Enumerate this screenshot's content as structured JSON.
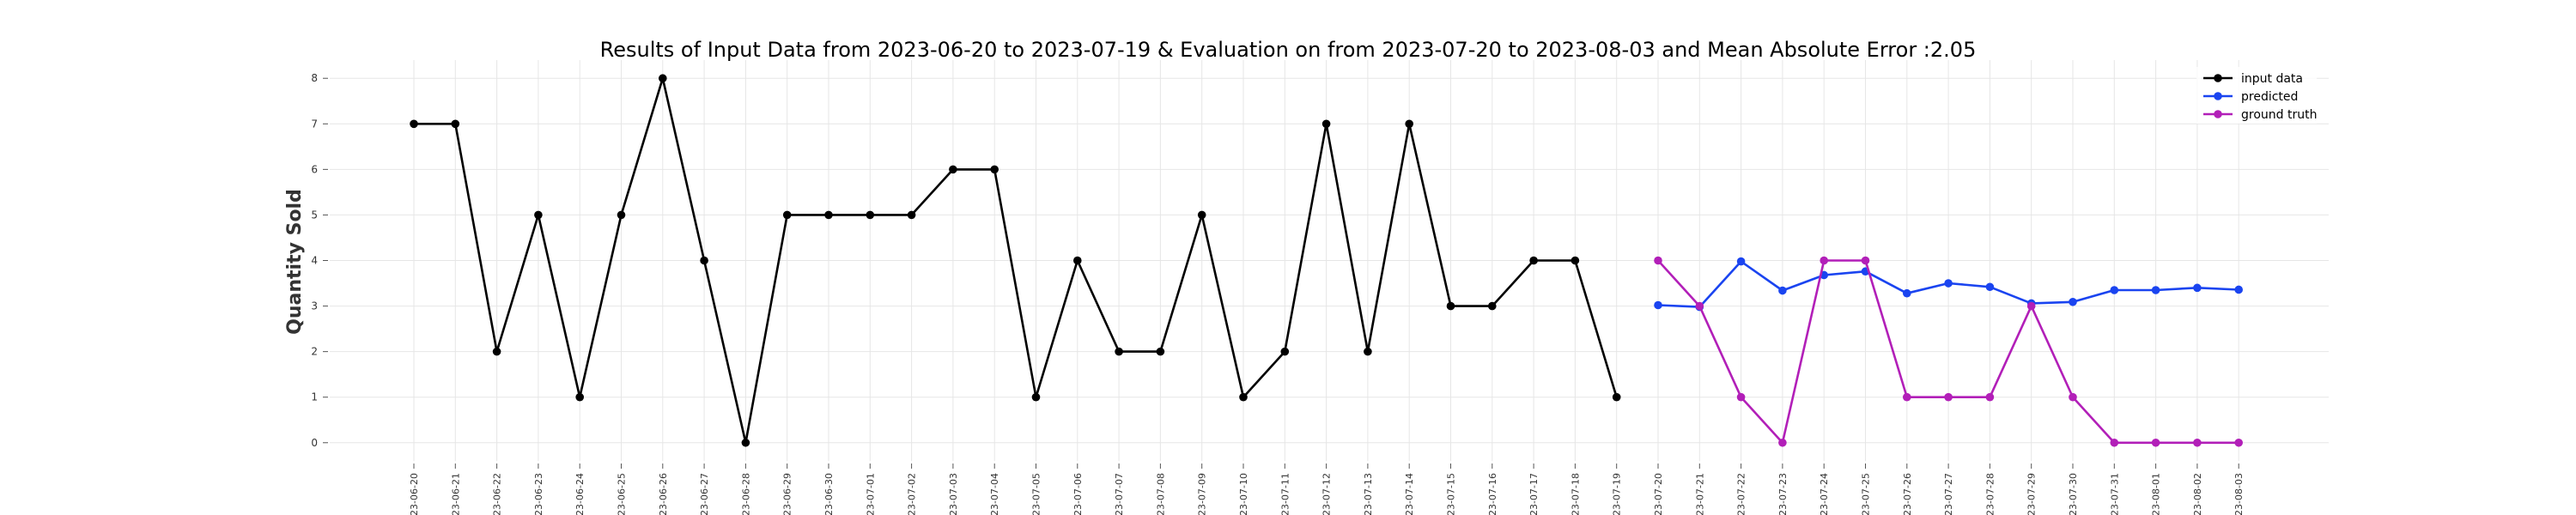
{
  "chart_data": {
    "type": "line",
    "title": "Results of Input Data from 2023-06-20 to 2023-07-19 & Evaluation on from 2023-07-20 to 2023-08-03 and Mean Absolute Error  :2.05",
    "xlabel": "",
    "ylabel": "Quantity Sold",
    "ylim": [
      -0.4,
      8.4
    ],
    "yticks": [
      0,
      1,
      2,
      3,
      4,
      5,
      6,
      7,
      8
    ],
    "grid": true,
    "legend_position": "top-right",
    "x_tick_labels": [
      "2023-06-20",
      "2023-06-21",
      "2023-06-22",
      "2023-06-23",
      "2023-06-24",
      "2023-06-25",
      "2023-06-26",
      "2023-06-27",
      "2023-06-28",
      "2023-06-29",
      "2023-06-30",
      "2023-07-01",
      "2023-07-02",
      "2023-07-03",
      "2023-07-04",
      "2023-07-05",
      "2023-07-06",
      "2023-07-07",
      "2023-07-08",
      "2023-07-09",
      "2023-07-10",
      "2023-07-11",
      "2023-07-12",
      "2023-07-13",
      "2023-07-14",
      "2023-07-15",
      "2023-07-16",
      "2023-07-17",
      "2023-07-18",
      "2023-07-19",
      "2023-07-20",
      "2023-07-21",
      "2023-07-22",
      "2023-07-23",
      "2023-07-24",
      "2023-07-25",
      "2023-07-26",
      "2023-07-27",
      "2023-07-28",
      "2023-07-29",
      "2023-07-30",
      "2023-07-31",
      "2023-08-01",
      "2023-08-02",
      "2023-08-03"
    ],
    "series": [
      {
        "name": "input data",
        "color": "#000000",
        "x": [
          "2023-06-20",
          "2023-06-21",
          "2023-06-22",
          "2023-06-23",
          "2023-06-24",
          "2023-06-25",
          "2023-06-26",
          "2023-06-27",
          "2023-06-28",
          "2023-06-29",
          "2023-06-30",
          "2023-07-01",
          "2023-07-02",
          "2023-07-03",
          "2023-07-04",
          "2023-07-05",
          "2023-07-06",
          "2023-07-07",
          "2023-07-08",
          "2023-07-09",
          "2023-07-10",
          "2023-07-11",
          "2023-07-12",
          "2023-07-13",
          "2023-07-14",
          "2023-07-15",
          "2023-07-16",
          "2023-07-17",
          "2023-07-18",
          "2023-07-19"
        ],
        "values": [
          7,
          7,
          2,
          5,
          1,
          5,
          8,
          4,
          0,
          5,
          5,
          5,
          5,
          6,
          6,
          1,
          4,
          2,
          2,
          5,
          1,
          2,
          7,
          2,
          7,
          3,
          3,
          4,
          4,
          1
        ]
      },
      {
        "name": "predicted",
        "color": "#1a44f0",
        "x": [
          "2023-07-20",
          "2023-07-21",
          "2023-07-22",
          "2023-07-23",
          "2023-07-24",
          "2023-07-25",
          "2023-07-26",
          "2023-07-27",
          "2023-07-28",
          "2023-07-29",
          "2023-07-30",
          "2023-07-31",
          "2023-08-01",
          "2023-08-02",
          "2023-08-03"
        ],
        "values": [
          3.02,
          2.98,
          3.98,
          3.34,
          3.68,
          3.76,
          3.28,
          3.5,
          3.42,
          3.06,
          3.09,
          3.35,
          3.35,
          3.4,
          3.36
        ]
      },
      {
        "name": "ground truth",
        "color": "#b21fb8",
        "x": [
          "2023-07-20",
          "2023-07-21",
          "2023-07-22",
          "2023-07-23",
          "2023-07-24",
          "2023-07-25",
          "2023-07-26",
          "2023-07-27",
          "2023-07-28",
          "2023-07-29",
          "2023-07-30",
          "2023-07-31",
          "2023-08-01",
          "2023-08-02",
          "2023-08-03"
        ],
        "values": [
          4,
          3,
          1,
          0,
          4,
          4,
          1,
          1,
          1,
          3,
          1,
          0,
          0,
          0,
          0
        ]
      }
    ]
  }
}
